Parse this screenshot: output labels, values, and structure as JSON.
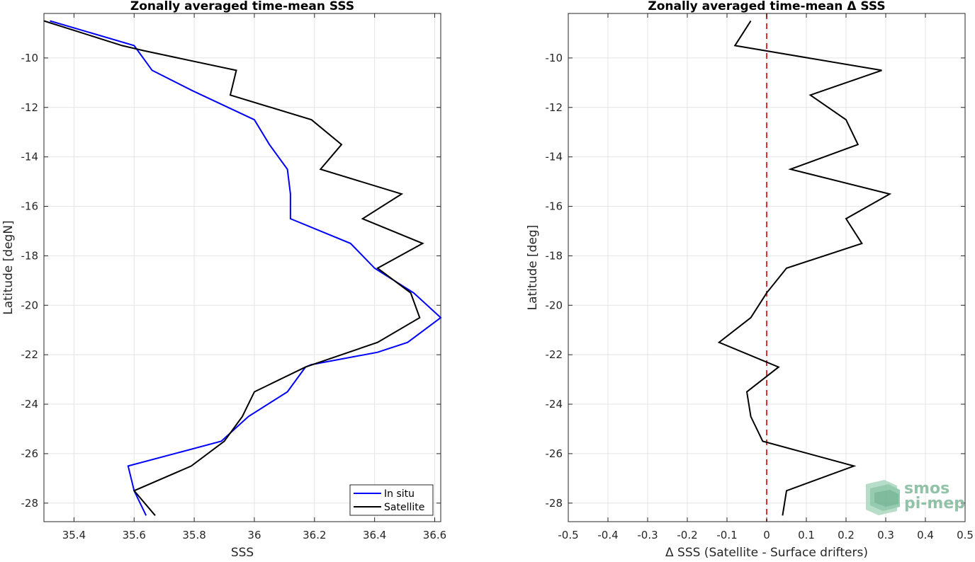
{
  "chart_data": [
    {
      "type": "line",
      "title": "Zonally averaged time-mean SSS",
      "xlabel": "SSS",
      "ylabel": "Latitude [degN]",
      "xlim": [
        35.3,
        36.62
      ],
      "ylim": [
        -28.75,
        -8.2
      ],
      "xticks": [
        "35.4",
        "35.6",
        "35.8",
        "36",
        "36.2",
        "36.4",
        "36.6"
      ],
      "xtick_values": [
        35.4,
        35.6,
        35.8,
        36.0,
        36.2,
        36.4,
        36.6
      ],
      "yticks": [
        "-10",
        "-12",
        "-14",
        "-16",
        "-18",
        "-20",
        "-22",
        "-24",
        "-26",
        "-28"
      ],
      "ytick_values": [
        -10,
        -12,
        -14,
        -16,
        -18,
        -20,
        -22,
        -24,
        -26,
        -28
      ],
      "grid": true,
      "legend_position": "bottom-right",
      "series": [
        {
          "name": "In situ",
          "color": "#0000ff",
          "x": [
            35.32,
            35.6,
            35.66,
            35.79,
            36.0,
            36.05,
            36.11,
            36.12,
            36.12,
            36.32,
            36.4,
            36.53,
            36.62,
            36.51,
            36.41,
            36.19,
            36.17,
            36.11,
            35.98,
            35.89,
            35.58,
            35.6,
            35.64
          ],
          "y": [
            -8.5,
            -9.5,
            -10.5,
            -11.3,
            -12.5,
            -13.5,
            -14.5,
            -15.5,
            -16.5,
            -17.5,
            -18.5,
            -19.5,
            -20.5,
            -21.5,
            -21.9,
            -22.4,
            -22.5,
            -23.5,
            -24.5,
            -25.5,
            -26.5,
            -27.5,
            -28.5
          ]
        },
        {
          "name": "Satellite",
          "color": "#000000",
          "x": [
            35.3,
            35.56,
            35.63,
            35.94,
            35.92,
            36.19,
            36.29,
            36.22,
            36.49,
            36.36,
            36.56,
            36.41,
            36.52,
            36.55,
            36.41,
            36.17,
            36.0,
            35.96,
            35.9,
            35.79,
            35.6,
            35.67
          ],
          "y": [
            -8.5,
            -9.5,
            -9.7,
            -10.5,
            -11.5,
            -12.5,
            -13.5,
            -14.5,
            -15.5,
            -16.5,
            -17.5,
            -18.5,
            -19.5,
            -20.5,
            -21.5,
            -22.5,
            -23.5,
            -24.5,
            -25.5,
            -26.5,
            -27.5,
            -28.5
          ]
        }
      ]
    },
    {
      "type": "line",
      "title": "Zonally averaged time-mean Δ SSS",
      "xlabel": "Δ SSS (Satellite - Surface drifters)",
      "ylabel": "Latitude [deg]",
      "xlim": [
        -0.5,
        0.5
      ],
      "ylim": [
        -28.75,
        -8.2
      ],
      "xticks": [
        "-0.5",
        "-0.4",
        "-0.3",
        "-0.2",
        "-0.1",
        "0",
        "0.1",
        "0.2",
        "0.3",
        "0.4",
        "0.5"
      ],
      "xtick_values": [
        -0.5,
        -0.4,
        -0.3,
        -0.2,
        -0.1,
        0,
        0.1,
        0.2,
        0.3,
        0.4,
        0.5
      ],
      "yticks": [
        "-10",
        "-12",
        "-14",
        "-16",
        "-18",
        "-20",
        "-22",
        "-24",
        "-26",
        "-28"
      ],
      "ytick_values": [
        -10,
        -12,
        -14,
        -16,
        -18,
        -20,
        -22,
        -24,
        -26,
        -28
      ],
      "grid": true,
      "reference_line": {
        "x": 0,
        "color": "#e03030",
        "style": "dashed"
      },
      "series": [
        {
          "color": "#000000",
          "x": [
            -0.04,
            -0.08,
            0.29,
            0.11,
            0.2,
            0.23,
            0.06,
            0.31,
            0.2,
            0.24,
            0.05,
            0.0,
            -0.04,
            -0.12,
            0.03,
            -0.05,
            -0.04,
            -0.01,
            0.22,
            0.05,
            0.04
          ],
          "y": [
            -8.5,
            -9.5,
            -10.5,
            -11.5,
            -12.5,
            -13.5,
            -14.5,
            -15.5,
            -16.5,
            -17.5,
            -18.5,
            -19.5,
            -20.5,
            -21.5,
            -22.5,
            -23.5,
            -24.5,
            -25.5,
            -26.5,
            -27.5,
            -28.5
          ]
        }
      ]
    }
  ],
  "logo": {
    "line1": "smos",
    "line2": "pi-mep"
  }
}
